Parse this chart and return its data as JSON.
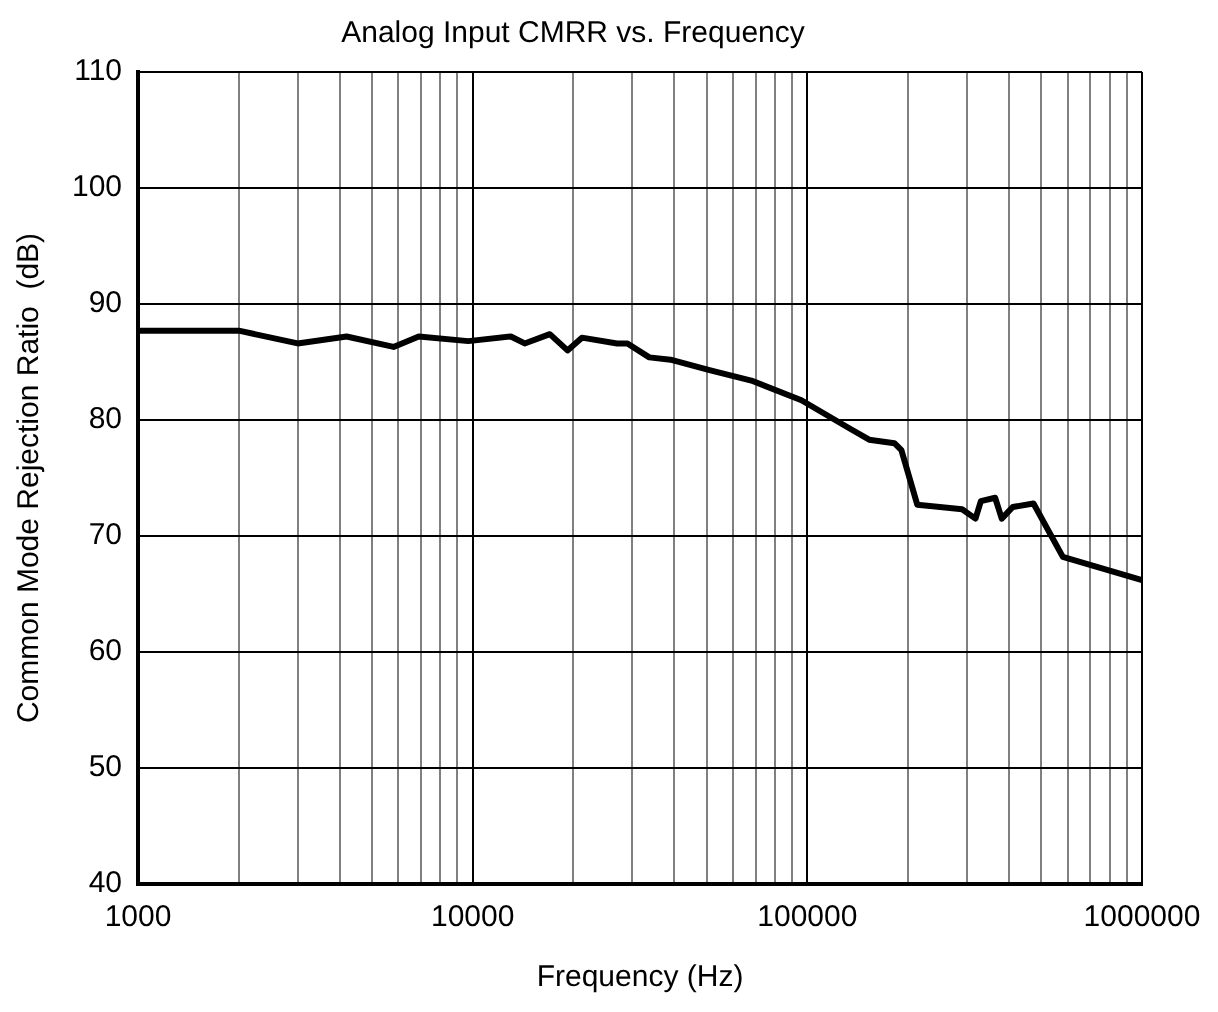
{
  "chart_data": {
    "type": "line",
    "title": "Analog Input CMRR vs. Frequency",
    "xlabel": "Frequency (Hz)",
    "ylabel": "Common Mode Rejection Ratio  (dB)",
    "log": "x",
    "grid": true,
    "legend": false,
    "marker": "none",
    "line_style": "solid",
    "xlim": [
      1000,
      1000000
    ],
    "ylim": [
      40,
      110
    ],
    "xticks": [
      1000,
      {
        "value": 2000,
        "label": null
      },
      {
        "value": 3000,
        "label": null
      },
      {
        "value": 4000,
        "label": null
      },
      {
        "value": 5000,
        "label": null
      },
      {
        "value": 6000,
        "label": null
      },
      {
        "value": 7000,
        "label": null
      },
      {
        "value": 8000,
        "label": null
      },
      {
        "value": 9000,
        "label": null
      },
      10000,
      {
        "value": 20000,
        "label": null
      },
      {
        "value": 30000,
        "label": null
      },
      {
        "value": 40000,
        "label": null
      },
      {
        "value": 50000,
        "label": null
      },
      {
        "value": 60000,
        "label": null
      },
      {
        "value": 70000,
        "label": null
      },
      {
        "value": 80000,
        "label": null
      },
      {
        "value": 90000,
        "label": null
      },
      100000,
      {
        "value": 200000,
        "label": null
      },
      {
        "value": 300000,
        "label": null
      },
      {
        "value": 400000,
        "label": null
      },
      {
        "value": 500000,
        "label": null
      },
      {
        "value": 600000,
        "label": null
      },
      {
        "value": 700000,
        "label": null
      },
      {
        "value": 800000,
        "label": null
      },
      {
        "value": 900000,
        "label": null
      },
      1000000
    ],
    "yticks": [
      40,
      50,
      60,
      70,
      80,
      90,
      100,
      110
    ],
    "series": [
      {
        "color": "#000000",
        "x": [
          1000,
          2000,
          3000,
          4200,
          5800,
          6900,
          9700,
          13000,
          14300,
          17000,
          19200,
          21200,
          27000,
          29000,
          33700,
          39000,
          51000,
          68000,
          96000,
          135000,
          153000,
          182000,
          191000,
          213000,
          290000,
          318000,
          330000,
          364000,
          381000,
          411000,
          474000,
          580000,
          1000000
        ],
        "values": [
          87.7,
          87.7,
          86.6,
          87.2,
          86.3,
          87.2,
          86.8,
          87.2,
          86.6,
          87.4,
          86.0,
          87.1,
          86.6,
          86.6,
          85.4,
          85.2,
          84.3,
          83.4,
          81.7,
          79.2,
          78.3,
          78.0,
          77.4,
          72.7,
          72.3,
          71.5,
          73.0,
          73.3,
          71.5,
          72.5,
          72.8,
          68.2,
          66.2
        ]
      }
    ]
  }
}
